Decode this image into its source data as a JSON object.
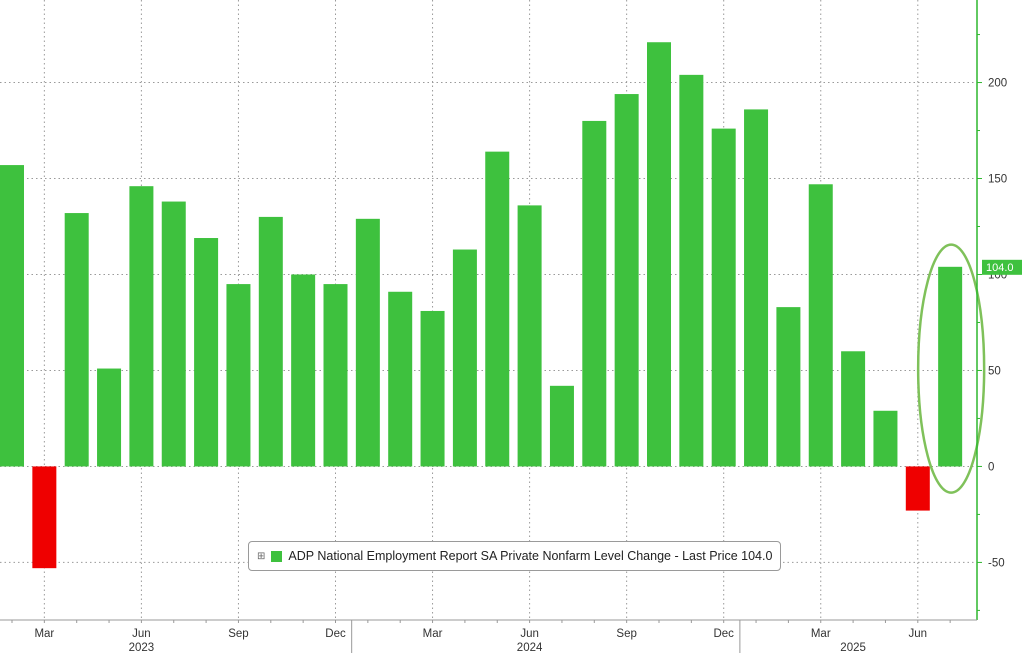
{
  "chart_data": {
    "type": "bar",
    "categories": [
      "Feb 2023",
      "Mar 2023",
      "Apr 2023",
      "May 2023",
      "Jun 2023",
      "Jul 2023",
      "Aug 2023",
      "Sep 2023",
      "Oct 2023",
      "Nov 2023",
      "Dec 2023",
      "Jan 2024",
      "Feb 2024",
      "Mar 2024",
      "Apr 2024",
      "May 2024",
      "Jun 2024",
      "Jul 2024",
      "Aug 2024",
      "Sep 2024",
      "Oct 2024",
      "Nov 2024",
      "Dec 2024",
      "Jan 2025",
      "Feb 2025",
      "Mar 2025",
      "Apr 2025",
      "May 2025",
      "Jun 2025",
      "Jul 2025"
    ],
    "series": [
      {
        "name": "ADP National Employment Report SA Private Nonfarm Level Change",
        "values": [
          157,
          -53,
          132,
          51,
          146,
          138,
          119,
          95,
          130,
          100,
          95,
          129,
          91,
          81,
          113,
          164,
          136,
          42,
          180,
          194,
          221,
          204,
          176,
          186,
          83,
          147,
          60,
          29,
          -23,
          104
        ]
      }
    ],
    "ylim": [
      -80,
      243
    ],
    "yticks": [
      -50,
      0,
      50,
      100,
      150,
      200
    ],
    "x_month_labels": [
      {
        "index": 1,
        "label": "Mar"
      },
      {
        "index": 4,
        "label": "Jun"
      },
      {
        "index": 7,
        "label": "Sep"
      },
      {
        "index": 10,
        "label": "Dec"
      },
      {
        "index": 13,
        "label": "Mar"
      },
      {
        "index": 16,
        "label": "Jun"
      },
      {
        "index": 19,
        "label": "Sep"
      },
      {
        "index": 22,
        "label": "Dec"
      },
      {
        "index": 25,
        "label": "Mar"
      },
      {
        "index": 28,
        "label": "Jun"
      }
    ],
    "x_year_labels": [
      {
        "index": 4,
        "label": "2023"
      },
      {
        "index": 16,
        "label": "2024"
      },
      {
        "index": 26,
        "label": "2025"
      }
    ],
    "year_boundaries": [
      10.5,
      22.5
    ],
    "last_price_label": "104.0",
    "highlight_index": 29,
    "grid": true,
    "colors": {
      "positive": "#3ec13e",
      "negative": "#ef0000",
      "axis": "#2fb72f",
      "highlight": "#7fc15a",
      "grid": "#9a9a9a",
      "tag_bg": "#3ec13e"
    }
  },
  "legend": {
    "toggle": "⊞",
    "text": "ADP National Employment Report SA Private Nonfarm Level Change - Last Price 104.0"
  }
}
